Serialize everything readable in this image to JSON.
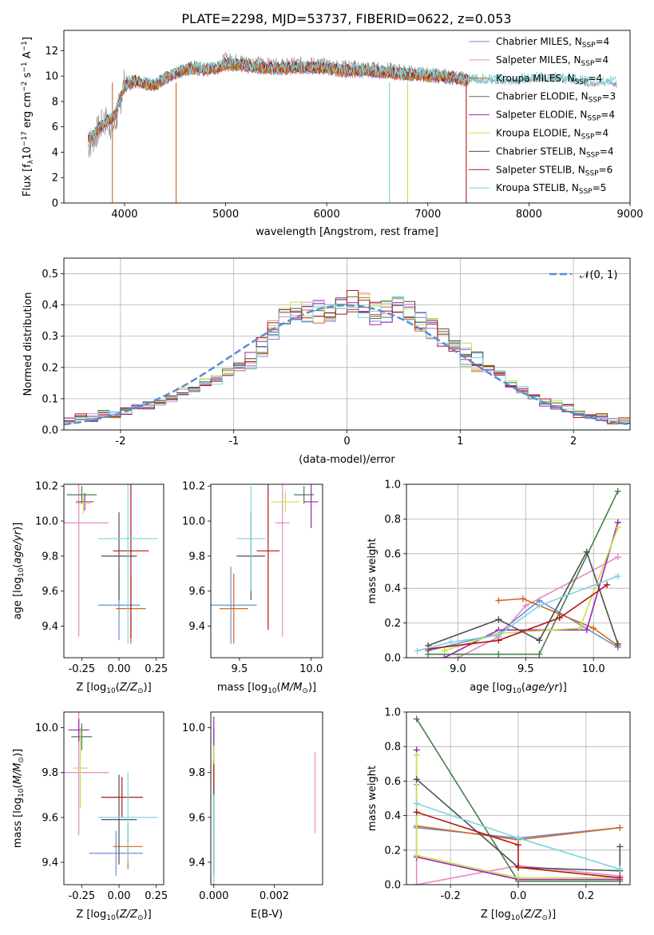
{
  "figure": {
    "title": "PLATE=2298, MJD=53737, FIBERID=0622, z=0.053"
  },
  "colors": [
    "#6a8fdc",
    "#e58ac2",
    "#d2691e",
    "#4a7f4a",
    "#9b27b0",
    "#c9e04a",
    "#505050",
    "#b01818",
    "#7ed3e0"
  ],
  "chart_data": [
    {
      "id": "spectrum",
      "type": "line",
      "title": "PLATE=2298, MJD=53737, FIBERID=0622, z=0.053",
      "xlabel": "wavelength [Angstrom, rest frame]",
      "ylabel": "Flux [f",
      "xlim": [
        3400,
        9000
      ],
      "ylim": [
        0,
        13.6
      ],
      "xticks": [
        4000,
        5000,
        6000,
        7000,
        8000,
        9000
      ],
      "yticks": [
        0,
        2,
        4,
        6,
        8,
        10,
        12
      ],
      "legend_position": "top-right",
      "observed": {
        "x": [
          3640,
          3700,
          3800,
          3900,
          4000,
          4100,
          4200,
          4300,
          4400,
          4500,
          4600,
          4700,
          4800,
          4900,
          5000,
          5200,
          5400,
          5600,
          5800,
          6000,
          6200,
          6400,
          6600,
          6800,
          7000,
          7200,
          7400,
          7600,
          7800,
          8000,
          8200,
          8400,
          8600,
          8800,
          8870
        ],
        "y": [
          4.5,
          5.2,
          6.5,
          6.0,
          9.5,
          9.8,
          9.5,
          9.2,
          9.8,
          10.3,
          10.6,
          10.8,
          10.6,
          10.7,
          11.4,
          11.2,
          11.0,
          10.9,
          11.1,
          10.9,
          10.8,
          10.7,
          10.6,
          10.4,
          10.2,
          10.1,
          9.8,
          9.6,
          9.6,
          9.7,
          9.9,
          9.8,
          9.3,
          9.6,
          9.2
        ]
      },
      "model": {
        "x": [
          3640,
          3700,
          3800,
          3900,
          4000,
          4100,
          4200,
          4300,
          4400,
          4500,
          4600,
          4700,
          4800,
          4900,
          5000,
          5200,
          5400,
          5600,
          5800,
          6000,
          6200,
          6400,
          6600,
          6800,
          7000,
          7200,
          7400,
          7600,
          7800,
          8000,
          8200,
          8400,
          8600,
          8800,
          8870
        ],
        "y": [
          5.0,
          5.4,
          6.3,
          6.8,
          9.2,
          9.6,
          9.4,
          9.3,
          9.8,
          10.2,
          10.5,
          10.6,
          10.5,
          10.6,
          10.9,
          10.8,
          10.6,
          10.6,
          10.7,
          10.6,
          10.4,
          10.4,
          10.3,
          10.1,
          10.0,
          9.9,
          9.7,
          9.6,
          9.6,
          9.7,
          9.8,
          9.7,
          9.5,
          9.5,
          9.4
        ]
      },
      "legend": [
        {
          "name": "Chabrier MILES, N",
          "n": "4"
        },
        {
          "name": "Salpeter MILES, N",
          "n": "4"
        },
        {
          "name": "Kroupa MILES, N",
          "n": "4"
        },
        {
          "name": "Chabrier ELODIE, N",
          "n": "3"
        },
        {
          "name": "Salpeter ELODIE, N",
          "n": "4"
        },
        {
          "name": "Kroupa ELODIE, N",
          "n": "4"
        },
        {
          "name": "Chabrier STELIB, N",
          "n": "4"
        },
        {
          "name": "Salpeter STELIB, N",
          "n": "6"
        },
        {
          "name": "Kroupa STELIB, N",
          "n": "5"
        }
      ],
      "legend_sub": "SSP"
    },
    {
      "id": "residuals",
      "type": "line",
      "xlabel": "(data-model)/error",
      "ylabel": "Normed distribution",
      "xlim": [
        -2.5,
        2.5
      ],
      "ylim": [
        0,
        0.55
      ],
      "xticks": [
        -2,
        -1,
        0,
        1,
        2
      ],
      "yticks": [
        0.0,
        0.1,
        0.2,
        0.3,
        0.4,
        0.5
      ],
      "grid": true,
      "legend_position": "top-right",
      "legend": "𝒩(0, 1)",
      "histogram_bin_edges_start": -2.5,
      "histogram_bin_width": 0.1,
      "histogram_mean_values": [
        0.03,
        0.04,
        0.04,
        0.05,
        0.05,
        0.06,
        0.07,
        0.08,
        0.09,
        0.1,
        0.12,
        0.13,
        0.15,
        0.16,
        0.18,
        0.2,
        0.23,
        0.27,
        0.31,
        0.36,
        0.38,
        0.37,
        0.38,
        0.38,
        0.39,
        0.41,
        0.4,
        0.37,
        0.38,
        0.4,
        0.38,
        0.35,
        0.32,
        0.29,
        0.26,
        0.24,
        0.22,
        0.2,
        0.18,
        0.15,
        0.13,
        0.11,
        0.09,
        0.08,
        0.07,
        0.05,
        0.04,
        0.04,
        0.03,
        0.03
      ],
      "histogram_series_offsets": [
        0.0,
        0.015,
        -0.01,
        0.02,
        -0.02,
        0.025,
        -0.005,
        0.01,
        -0.015
      ]
    },
    {
      "id": "age-vs-Z",
      "type": "scatter",
      "xlabel": "Z [log",
      "ylabel": "age  [log",
      "xlim": [
        -0.37,
        0.3
      ],
      "ylim": [
        9.22,
        10.21
      ],
      "xticks": [
        -0.25,
        0.0,
        0.25
      ],
      "yticks": [
        9.4,
        9.6,
        9.8,
        10.0,
        10.2
      ],
      "points": [
        {
          "x": 0.0,
          "y": 9.52,
          "xerr": 0.14,
          "yerr": 0.2,
          "c": 0
        },
        {
          "x": -0.27,
          "y": 9.99,
          "xerr": 0.2,
          "yerr": 0.65,
          "c": 1
        },
        {
          "x": 0.08,
          "y": 9.5,
          "xerr": 0.1,
          "yerr": 0.2,
          "c": 2
        },
        {
          "x": -0.25,
          "y": 10.15,
          "xerr": 0.1,
          "yerr": 0.05,
          "c": 3
        },
        {
          "x": -0.23,
          "y": 10.11,
          "xerr": 0.06,
          "yerr": 0.05,
          "c": 4
        },
        {
          "x": -0.24,
          "y": 10.1,
          "xerr": 0.05,
          "yerr": 0.06,
          "c": 5
        },
        {
          "x": 0.0,
          "y": 9.8,
          "xerr": 0.12,
          "yerr": 0.25,
          "c": 6
        },
        {
          "x": 0.08,
          "y": 9.83,
          "xerr": 0.12,
          "yerr": 0.5,
          "c": 7
        },
        {
          "x": 0.06,
          "y": 9.9,
          "xerr": 0.2,
          "yerr": 0.6,
          "c": 8
        }
      ]
    },
    {
      "id": "age-vs-mass",
      "type": "scatter",
      "xlabel": "mass [log",
      "ylabel": "",
      "xlim": [
        9.3,
        10.08
      ],
      "ylim": [
        9.22,
        10.21
      ],
      "xticks": [
        9.5,
        10.0
      ],
      "yticks": [
        9.4,
        9.6,
        9.8,
        10.0,
        10.2
      ],
      "points": [
        {
          "x": 9.44,
          "y": 9.52,
          "xerr": 0.18,
          "yerr": 0.22,
          "c": 0
        },
        {
          "x": 9.8,
          "y": 9.99,
          "xerr": 0.05,
          "yerr": 0.65,
          "c": 1
        },
        {
          "x": 9.46,
          "y": 9.5,
          "xerr": 0.1,
          "yerr": 0.2,
          "c": 2
        },
        {
          "x": 9.95,
          "y": 10.15,
          "xerr": 0.07,
          "yerr": 0.05,
          "c": 3
        },
        {
          "x": 10.0,
          "y": 10.11,
          "xerr": 0.05,
          "yerr": 0.15,
          "c": 4
        },
        {
          "x": 9.82,
          "y": 10.11,
          "xerr": 0.1,
          "yerr": 0.06,
          "c": 5
        },
        {
          "x": 9.58,
          "y": 9.8,
          "xerr": 0.1,
          "yerr": 0.25,
          "c": 6
        },
        {
          "x": 9.7,
          "y": 9.83,
          "xerr": 0.08,
          "yerr": 0.45,
          "c": 7
        },
        {
          "x": 9.58,
          "y": 9.9,
          "xerr": 0.1,
          "yerr": 0.3,
          "c": 8
        }
      ]
    },
    {
      "id": "weight-vs-age",
      "type": "line",
      "xlabel": "age  [log",
      "ylabel": "mass weight",
      "xlim": [
        8.62,
        10.27
      ],
      "ylim": [
        0,
        1.0
      ],
      "xticks": [
        9.0,
        9.5,
        10.0
      ],
      "yticks": [
        0.0,
        0.2,
        0.4,
        0.6,
        0.8,
        1.0
      ],
      "grid": true,
      "series": [
        {
          "c": 0,
          "x": [
            8.78,
            9.3,
            9.6,
            10.18
          ],
          "y": [
            0.04,
            0.14,
            0.33,
            0.06
          ]
        },
        {
          "c": 1,
          "x": [
            9.0,
            9.3,
            9.5,
            10.18
          ],
          "y": [
            0.0,
            0.12,
            0.3,
            0.58
          ]
        },
        {
          "c": 2,
          "x": [
            9.3,
            9.48,
            10.0,
            10.18
          ],
          "y": [
            0.33,
            0.34,
            0.17,
            0.07
          ]
        },
        {
          "c": 3,
          "x": [
            8.78,
            9.3,
            9.6,
            10.18
          ],
          "y": [
            0.02,
            0.02,
            0.02,
            0.96
          ]
        },
        {
          "c": 4,
          "x": [
            8.9,
            9.3,
            9.95,
            10.18
          ],
          "y": [
            0.0,
            0.16,
            0.16,
            0.78
          ]
        },
        {
          "c": 5,
          "x": [
            8.9,
            9.3,
            9.9,
            10.18
          ],
          "y": [
            0.04,
            0.14,
            0.17,
            0.75
          ]
        },
        {
          "c": 6,
          "x": [
            8.78,
            9.3,
            9.6,
            9.95,
            10.18
          ],
          "y": [
            0.07,
            0.22,
            0.1,
            0.61,
            0.08
          ]
        },
        {
          "c": 7,
          "x": [
            8.78,
            9.3,
            9.75,
            10.1
          ],
          "y": [
            0.05,
            0.1,
            0.23,
            0.42
          ]
        },
        {
          "c": 8,
          "x": [
            8.7,
            8.95,
            9.3,
            9.6,
            10.18
          ],
          "y": [
            0.04,
            0.09,
            0.13,
            0.3,
            0.47
          ]
        }
      ]
    },
    {
      "id": "mass-vs-Z",
      "type": "scatter",
      "xlabel": "Z [log",
      "ylabel": "mass [log",
      "xlim": [
        -0.37,
        0.3
      ],
      "ylim": [
        9.3,
        10.07
      ],
      "xticks": [
        -0.25,
        0.0,
        0.25
      ],
      "yticks": [
        9.4,
        9.6,
        9.8,
        10.0
      ],
      "points": [
        {
          "x": -0.02,
          "y": 9.44,
          "xerr": 0.18,
          "yerr": 0.1,
          "c": 0
        },
        {
          "x": -0.27,
          "y": 9.8,
          "xerr": 0.2,
          "yerr": 0.28,
          "c": 1
        },
        {
          "x": 0.06,
          "y": 9.47,
          "xerr": 0.1,
          "yerr": 0.1,
          "c": 2
        },
        {
          "x": -0.25,
          "y": 9.96,
          "xerr": 0.07,
          "yerr": 0.06,
          "c": 3
        },
        {
          "x": -0.27,
          "y": 9.99,
          "xerr": 0.07,
          "yerr": 0.05,
          "c": 4
        },
        {
          "x": -0.26,
          "y": 9.82,
          "xerr": 0.05,
          "yerr": 0.18,
          "c": 5
        },
        {
          "x": 0.0,
          "y": 9.59,
          "xerr": 0.12,
          "yerr": 0.2,
          "c": 6
        },
        {
          "x": 0.02,
          "y": 9.69,
          "xerr": 0.14,
          "yerr": 0.09,
          "c": 7
        },
        {
          "x": 0.06,
          "y": 9.6,
          "xerr": 0.2,
          "yerr": 0.2,
          "c": 8
        }
      ]
    },
    {
      "id": "mass-vs-ebv",
      "type": "scatter",
      "xlabel": "E(B-V)",
      "ylabel": "",
      "xlim": [
        -0.0001,
        0.0036
      ],
      "ylim": [
        9.3,
        10.07
      ],
      "xticks": [
        0.0,
        0.002
      ],
      "yticks": [
        9.4,
        9.6,
        9.8,
        10.0
      ],
      "points": [
        {
          "x": 0.0,
          "y": 9.44,
          "xerr": 0,
          "yerr": 0.1,
          "c": 0
        },
        {
          "x": 0.00335,
          "y": 9.71,
          "xerr": 0,
          "yerr": 0.18,
          "c": 1
        },
        {
          "x": 0.0,
          "y": 9.47,
          "xerr": 0,
          "yerr": 0.1,
          "c": 2
        },
        {
          "x": 0.0,
          "y": 9.75,
          "xerr": 0,
          "yerr": 0.25,
          "c": 3
        },
        {
          "x": 0.0,
          "y": 9.9,
          "xerr": 0,
          "yerr": 0.15,
          "c": 4
        },
        {
          "x": 0.0,
          "y": 9.82,
          "xerr": 0,
          "yerr": 0.1,
          "c": 5
        },
        {
          "x": 0.0,
          "y": 9.55,
          "xerr": 0,
          "yerr": 0.2,
          "c": 6
        },
        {
          "x": 0.0,
          "y": 9.78,
          "xerr": 0,
          "yerr": 0.06,
          "c": 7
        },
        {
          "x": 0.0,
          "y": 9.5,
          "xerr": 0,
          "yerr": 0.2,
          "c": 8
        }
      ]
    },
    {
      "id": "weight-vs-Z",
      "type": "line",
      "xlabel": "Z [log",
      "ylabel": "mass weight",
      "xlim": [
        -0.33,
        0.33
      ],
      "ylim": [
        0,
        1.0
      ],
      "xticks": [
        -0.2,
        0.0,
        0.2
      ],
      "yticks": [
        0.0,
        0.2,
        0.4,
        0.6,
        0.8,
        1.0
      ],
      "grid": true,
      "series": [
        {
          "c": 0,
          "x": [
            -0.3,
            0.0,
            0.3
          ],
          "y": [
            0.33,
            0.27,
            0.33
          ]
        },
        {
          "c": 1,
          "x": [
            -0.3,
            -0.3,
            0.0,
            0.3
          ],
          "y": [
            0.58,
            0.0,
            0.11,
            0.05
          ]
        },
        {
          "c": 2,
          "x": [
            -0.3,
            0.0,
            0.3
          ],
          "y": [
            0.34,
            0.26,
            0.33
          ]
        },
        {
          "c": 3,
          "x": [
            -0.3,
            0.0,
            0.3
          ],
          "y": [
            0.96,
            0.02,
            0.02
          ]
        },
        {
          "c": 4,
          "x": [
            -0.3,
            -0.3,
            0.0,
            0.3
          ],
          "y": [
            0.78,
            0.16,
            0.03,
            0.03
          ]
        },
        {
          "c": 5,
          "x": [
            -0.3,
            -0.3,
            0.0,
            0.3
          ],
          "y": [
            0.75,
            0.17,
            0.04,
            0.04
          ]
        },
        {
          "c": 6,
          "x": [
            -0.3,
            0.0,
            0.3,
            0.3
          ],
          "y": [
            0.61,
            0.1,
            0.08,
            0.22
          ]
        },
        {
          "c": 7,
          "x": [
            -0.3,
            0.0,
            0.0,
            0.3
          ],
          "y": [
            0.42,
            0.23,
            0.1,
            0.04
          ]
        },
        {
          "c": 8,
          "x": [
            -0.3,
            0.0,
            0.3
          ],
          "y": [
            0.47,
            0.27,
            0.09
          ]
        }
      ]
    }
  ]
}
